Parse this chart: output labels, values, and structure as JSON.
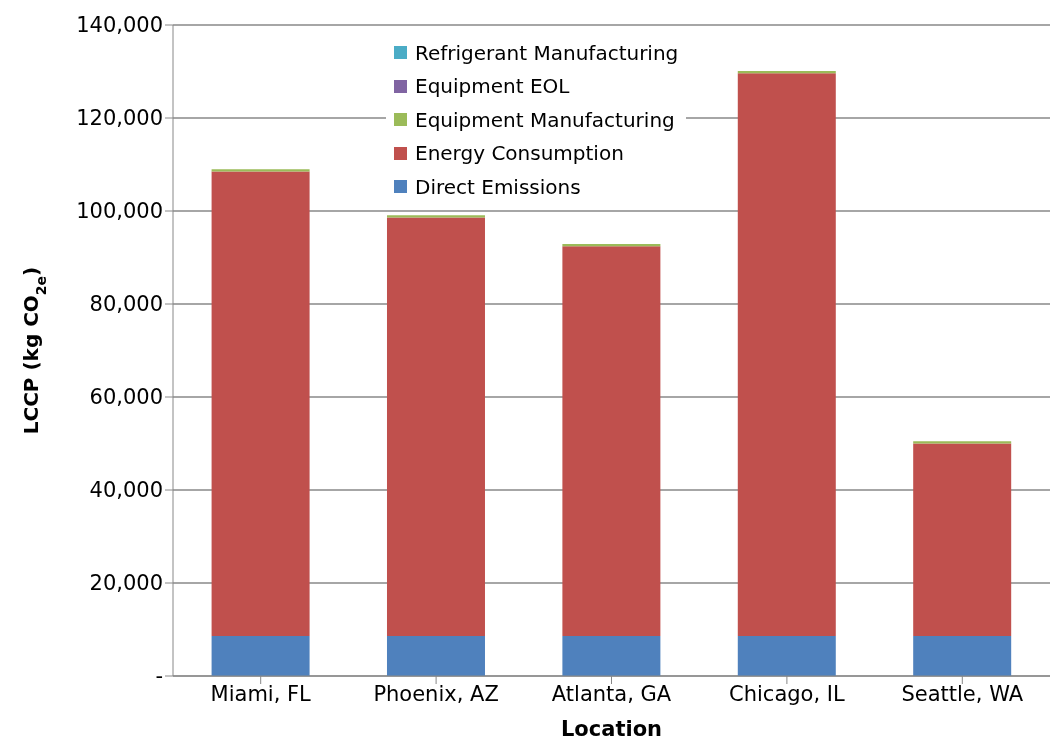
{
  "chart_data": {
    "type": "bar",
    "stacked": true,
    "xlabel": "Location",
    "ylabel": "LCCP (kg CO$_{2e}$)",
    "categories": [
      "Miami, FL",
      "Phoenix, AZ",
      "Atlanta, GA",
      "Chicago, IL",
      "Seattle, WA"
    ],
    "series": [
      {
        "name": "Direct Emissions",
        "color": "#4f81bd",
        "values": [
          8600,
          8600,
          8600,
          8600,
          8600
        ]
      },
      {
        "name": "Energy Consumption",
        "color": "#c0504d",
        "values": [
          99900,
          90000,
          83800,
          121000,
          41400
        ]
      },
      {
        "name": "Equipment Manufacturing",
        "color": "#9bbb59",
        "values": [
          500,
          500,
          500,
          500,
          500
        ]
      },
      {
        "name": "Equipment EOL",
        "color": "#8064a2",
        "values": [
          0,
          0,
          0,
          0,
          0
        ]
      },
      {
        "name": "Refrigerant Manufacturing",
        "color": "#4bacc6",
        "values": [
          0,
          0,
          0,
          0,
          0
        ]
      }
    ],
    "ylim": [
      0,
      140000
    ],
    "yticks": [
      {
        "value": 0,
        "label": "-"
      },
      {
        "value": 20000,
        "label": "20,000"
      },
      {
        "value": 40000,
        "label": "40,000"
      },
      {
        "value": 60000,
        "label": "60,000"
      },
      {
        "value": 80000,
        "label": "80,000"
      },
      {
        "value": 100000,
        "label": "100,000"
      },
      {
        "value": 120000,
        "label": "120,000"
      },
      {
        "value": 140000,
        "label": "140,000"
      }
    ],
    "grid": "y",
    "legend": "top"
  }
}
